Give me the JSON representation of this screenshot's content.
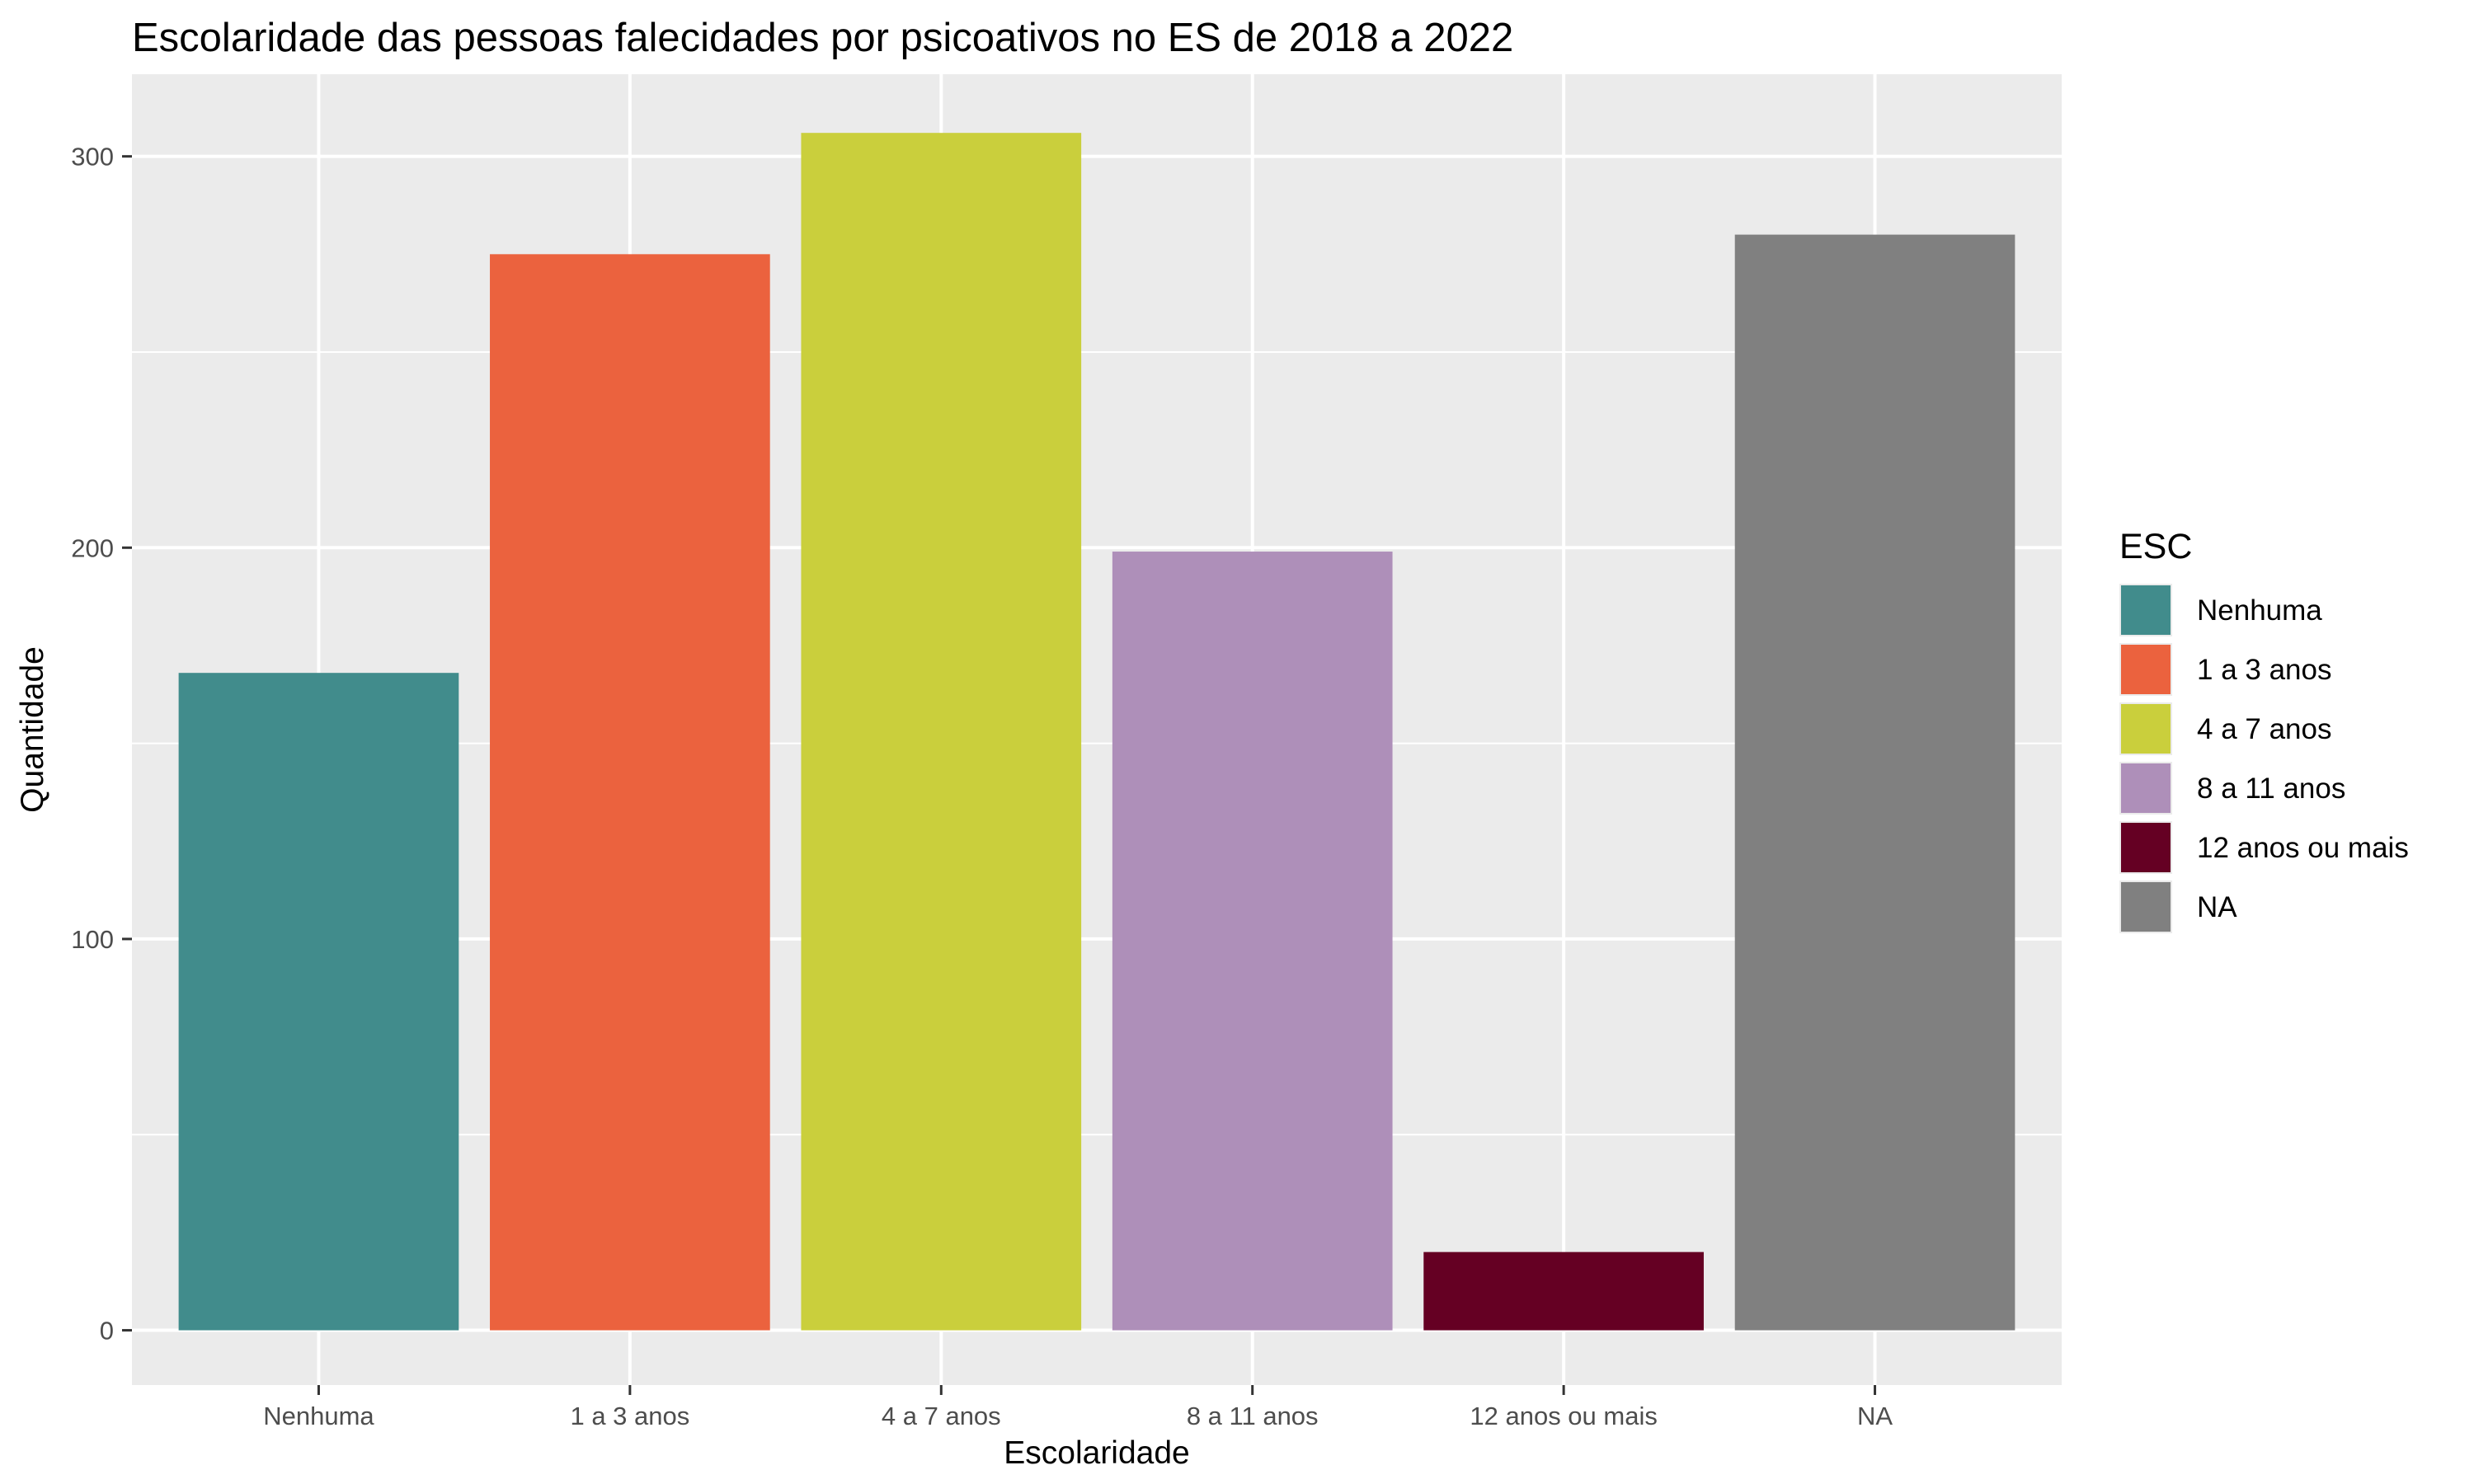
{
  "chart_data": {
    "type": "bar",
    "title": "Escolaridade das pessoas falecidades por psicoativos no ES de 2018 a 2022",
    "xlabel": "Escolaridade",
    "ylabel": "Quantidade",
    "categories": [
      "Nenhuma",
      "1 a 3 anos",
      "4 a 7 anos",
      "8 a 11 anos",
      "12 anos ou mais",
      "NA"
    ],
    "values": [
      168,
      275,
      306,
      199,
      20,
      280
    ],
    "colors": [
      "#418C8C",
      "#EB623E",
      "#CACF3C",
      "#AE8FB9",
      "#650023",
      "#808080"
    ],
    "ylim": [
      -14,
      321
    ],
    "yticks": [
      0,
      100,
      200,
      300
    ],
    "grid": true,
    "panel_background": "#EBEBEB",
    "legend": {
      "title": "ESC",
      "position": "right",
      "entries": [
        "Nenhuma",
        "1 a 3 anos",
        "4 a 7 anos",
        "8 a 11 anos",
        "12 anos ou mais",
        "NA"
      ]
    }
  }
}
